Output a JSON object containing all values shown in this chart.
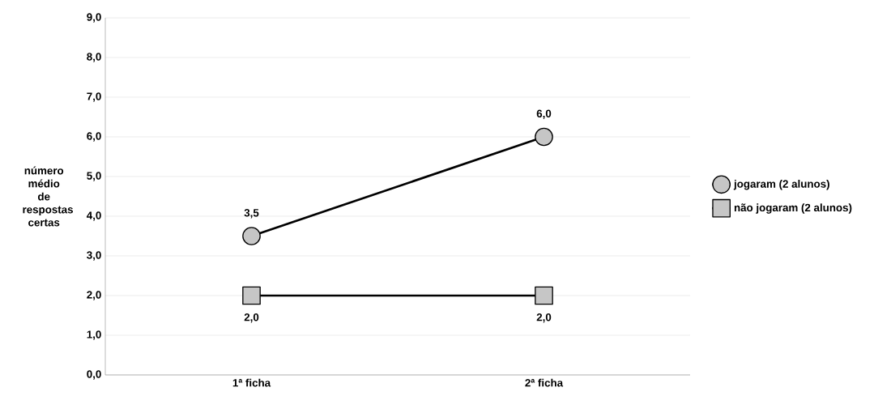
{
  "chart_data": {
    "type": "line",
    "ylabel": "número médio de respostas certas",
    "categories": [
      "1ª ficha",
      "2ª ficha"
    ],
    "series": [
      {
        "name": "jogaram (2 alunos)",
        "color": "#000000",
        "marker": "circle",
        "values": [
          3.5,
          6.0
        ],
        "value_labels": [
          "3,5",
          "6,0"
        ]
      },
      {
        "name": "não jogaram (2 alunos)",
        "color": "#000000",
        "marker": "square",
        "values": [
          2.0,
          2.0
        ],
        "value_labels": [
          "2,0",
          "2,0"
        ]
      }
    ],
    "ylim": [
      0,
      9
    ],
    "yticks": [
      {
        "value": 0,
        "label": "0,0"
      },
      {
        "value": 1,
        "label": "1,0"
      },
      {
        "value": 2,
        "label": "2,0"
      },
      {
        "value": 3,
        "label": "3,0"
      },
      {
        "value": 4,
        "label": "4,0"
      },
      {
        "value": 5,
        "label": "5,0"
      },
      {
        "value": 6,
        "label": "6,0"
      },
      {
        "value": 7,
        "label": "7,0"
      },
      {
        "value": 8,
        "label": "8,0"
      },
      {
        "value": 9,
        "label": "9,0"
      }
    ],
    "grid": "y",
    "legend": "right",
    "line_style": "solid"
  }
}
